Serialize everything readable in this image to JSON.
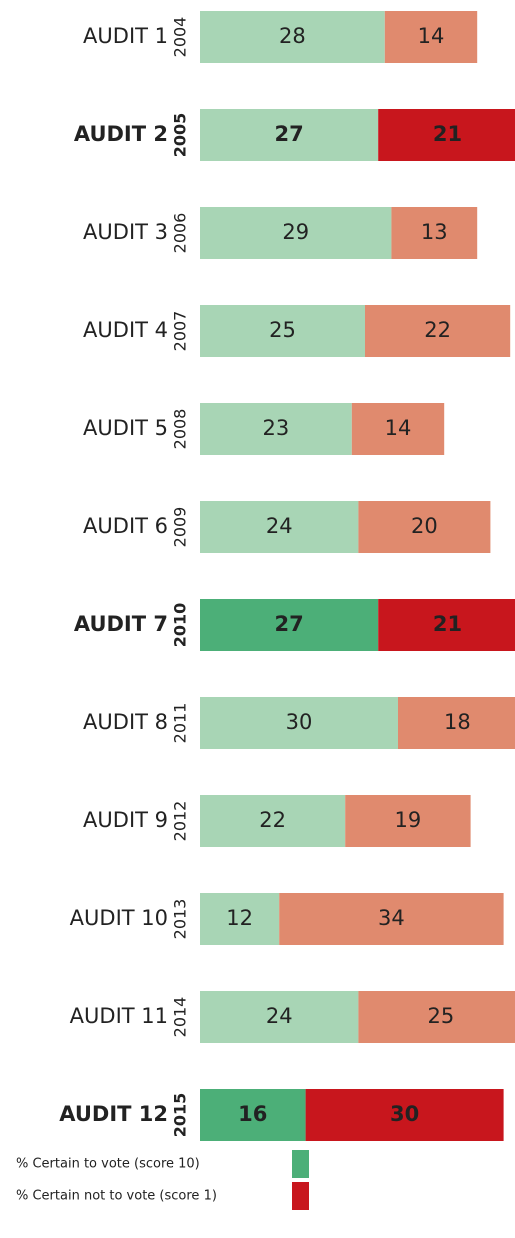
{
  "chart_data": {
    "type": "stacked-bar-horizontal",
    "categories": [
      "AUDIT 1",
      "AUDIT 2",
      "AUDIT 3",
      "AUDIT 4",
      "AUDIT 5",
      "AUDIT 6",
      "AUDIT 7",
      "AUDIT 8",
      "AUDIT 9",
      "AUDIT 10",
      "AUDIT 11",
      "AUDIT 12"
    ],
    "years": [
      "2004",
      "2005",
      "2006",
      "2007",
      "2008",
      "2009",
      "2010",
      "2011",
      "2012",
      "2013",
      "2014",
      "2015"
    ],
    "highlighted": [
      false,
      true,
      false,
      false,
      false,
      false,
      true,
      false,
      false,
      false,
      false,
      true
    ],
    "series": [
      {
        "name": "% Certain to vote (score 10)",
        "color": "#4caf78",
        "colors": [
          "#a8d5b5",
          "#a8d5b5",
          "#a8d5b5",
          "#a8d5b5",
          "#a8d5b5",
          "#a8d5b5",
          "#4caf78",
          "#a8d5b5",
          "#a8d5b5",
          "#a8d5b5",
          "#a8d5b5",
          "#4caf78"
        ],
        "values": [
          28,
          27,
          29,
          25,
          23,
          24,
          27,
          30,
          22,
          12,
          24,
          16
        ]
      },
      {
        "name": "% Certain not to vote (score 1)",
        "color": "#c8161d",
        "colors": [
          "#e08a6e",
          "#c8161d",
          "#e08a6e",
          "#e08a6e",
          "#e08a6e",
          "#e08a6e",
          "#c8161d",
          "#e08a6e",
          "#e08a6e",
          "#e08a6e",
          "#e08a6e",
          "#c8161d"
        ],
        "values": [
          14,
          21,
          13,
          22,
          14,
          20,
          21,
          18,
          19,
          34,
          25,
          30
        ]
      }
    ]
  }
}
